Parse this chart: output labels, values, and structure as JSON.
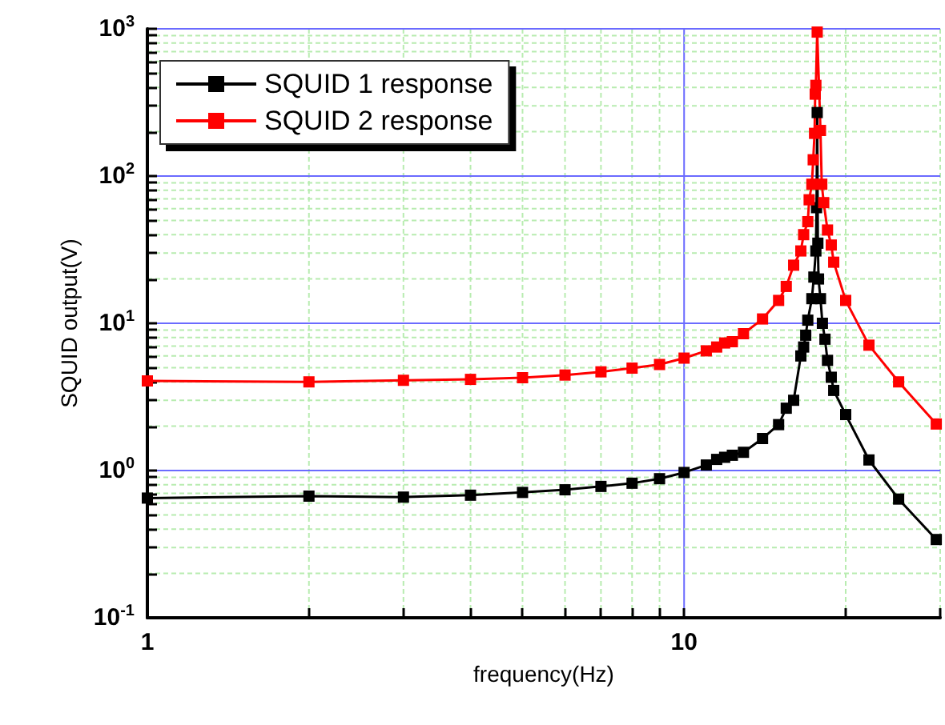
{
  "chart_data": {
    "type": "line",
    "xlabel": "frequency(Hz)",
    "ylabel": "SQUID output(V)",
    "log": "xy",
    "grid": true,
    "legend": "top left",
    "marker": "square",
    "line_style": "solid",
    "xlim": [
      1,
      30
    ],
    "xticks": [
      1,
      {
        "value": 2,
        "label": null
      },
      {
        "value": 3,
        "label": null
      },
      {
        "value": 4,
        "label": null
      },
      {
        "value": 5,
        "label": null
      },
      {
        "value": 6,
        "label": null
      },
      {
        "value": 7,
        "label": null
      },
      {
        "value": 8,
        "label": null
      },
      {
        "value": 9,
        "label": null
      },
      10,
      {
        "value": 20,
        "label": null
      },
      {
        "value": 30,
        "label": null
      }
    ],
    "ylim": [
      0.1,
      1000
    ],
    "yticks": [
      {
        "value": 0.1,
        "label": "10$^{-1}$"
      },
      {
        "value": 0.2,
        "label": null
      },
      {
        "value": 0.3,
        "label": null
      },
      {
        "value": 0.4,
        "label": null
      },
      {
        "value": 0.5,
        "label": null
      },
      {
        "value": 0.6,
        "label": null
      },
      {
        "value": 0.7,
        "label": null
      },
      {
        "value": 0.8,
        "label": null
      },
      {
        "value": 0.9,
        "label": null
      },
      {
        "value": 1,
        "label": "10$^{0}$"
      },
      {
        "value": 2,
        "label": null
      },
      {
        "value": 3,
        "label": null
      },
      {
        "value": 4,
        "label": null
      },
      {
        "value": 5,
        "label": null
      },
      {
        "value": 6,
        "label": null
      },
      {
        "value": 7,
        "label": null
      },
      {
        "value": 8,
        "label": null
      },
      {
        "value": 9,
        "label": null
      },
      {
        "value": 10,
        "label": "10$^{1}$"
      },
      {
        "value": 20,
        "label": null
      },
      {
        "value": 30,
        "label": null
      },
      {
        "value": 40,
        "label": null
      },
      {
        "value": 50,
        "label": null
      },
      {
        "value": 60,
        "label": null
      },
      {
        "value": 70,
        "label": null
      },
      {
        "value": 80,
        "label": null
      },
      {
        "value": 90,
        "label": null
      },
      {
        "value": 100,
        "label": "10$^{2}$"
      },
      {
        "value": 200,
        "label": null
      },
      {
        "value": 300,
        "label": null
      },
      {
        "value": 400,
        "label": null
      },
      {
        "value": 500,
        "label": null
      },
      {
        "value": 600,
        "label": null
      },
      {
        "value": 700,
        "label": null
      },
      {
        "value": 800,
        "label": null
      },
      {
        "value": 900,
        "label": null
      },
      {
        "value": 1000,
        "label": "10$^{3}$"
      }
    ],
    "series": [
      {
        "name": "SQUID 1 response",
        "color": "#000000",
        "x": [
          1,
          2,
          3,
          4,
          5,
          6,
          7,
          8,
          9,
          10,
          11,
          11.5,
          11.9,
          12.3,
          12.9,
          14,
          15,
          15.5,
          16,
          16.5,
          16.7,
          16.85,
          17,
          17.3,
          17.45,
          17.6,
          17.65,
          17.7,
          17.75,
          17.8,
          17.95,
          18.1,
          18.3,
          18.5,
          18.8,
          19,
          20,
          22.1,
          25.1,
          29.5
        ],
        "values": [
          0.65,
          0.67,
          0.66,
          0.68,
          0.71,
          0.74,
          0.78,
          0.82,
          0.88,
          0.97,
          1.09,
          1.19,
          1.23,
          1.27,
          1.33,
          1.65,
          2.05,
          2.65,
          3.0,
          6.0,
          6.9,
          8.3,
          10.5,
          14.7,
          20.6,
          31,
          61,
          270,
          35,
          20,
          14.7,
          10,
          7.8,
          5.6,
          4.3,
          3.5,
          2.4,
          1.18,
          0.64,
          0.34
        ]
      },
      {
        "name": "SQUID 2 response",
        "color": "#ff0000",
        "x": [
          1,
          2,
          3,
          4,
          5,
          6,
          7,
          8,
          9,
          10,
          11,
          11.5,
          11.9,
          12.3,
          12.9,
          14,
          15,
          15.5,
          16,
          16.5,
          16.7,
          17,
          17.1,
          17.3,
          17.4,
          17.5,
          17.55,
          17.6,
          17.7,
          17.95,
          18.05,
          18.2,
          18.5,
          18.8,
          19,
          20,
          22.1,
          25.1,
          29.5
        ],
        "values": [
          4.06,
          4.0,
          4.1,
          4.16,
          4.27,
          4.45,
          4.68,
          4.96,
          5.25,
          5.8,
          6.5,
          6.9,
          7.35,
          7.5,
          8.5,
          10.7,
          14.3,
          17.8,
          24.8,
          31,
          40,
          49,
          69,
          88,
          129,
          195,
          360,
          413,
          950,
          204,
          88,
          66,
          43,
          34,
          26,
          14.3,
          7.1,
          4.0,
          2.07
        ]
      }
    ]
  }
}
